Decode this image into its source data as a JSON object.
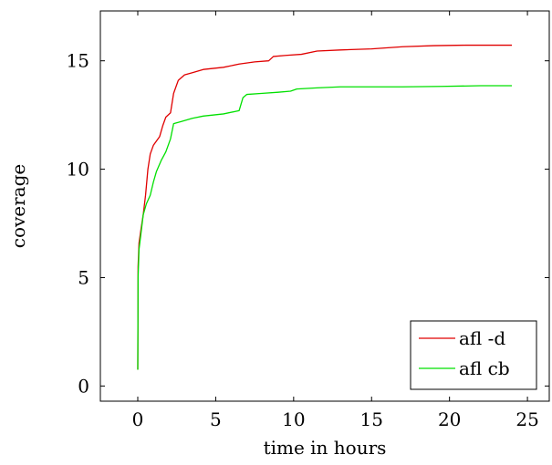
{
  "chart_data": {
    "type": "line",
    "title": "",
    "xlabel": "time in hours",
    "ylabel": "coverage",
    "xlim": [
      -2.4,
      26.4
    ],
    "ylim": [
      -0.7,
      17.3
    ],
    "xticks": [
      0,
      5,
      10,
      15,
      20,
      25
    ],
    "yticks": [
      0,
      5,
      10,
      15
    ],
    "grid": false,
    "legend_position": "bottom-right",
    "series": [
      {
        "name": "afl -d",
        "color": "#e00000",
        "points": [
          [
            0.0,
            0.75
          ],
          [
            0.02,
            5.5
          ],
          [
            0.08,
            6.6
          ],
          [
            0.2,
            7.2
          ],
          [
            0.35,
            7.9
          ],
          [
            0.5,
            8.8
          ],
          [
            0.65,
            10.0
          ],
          [
            0.8,
            10.7
          ],
          [
            1.0,
            11.1
          ],
          [
            1.2,
            11.3
          ],
          [
            1.4,
            11.5
          ],
          [
            1.6,
            12.0
          ],
          [
            1.8,
            12.4
          ],
          [
            2.1,
            12.6
          ],
          [
            2.3,
            13.5
          ],
          [
            2.6,
            14.1
          ],
          [
            3.0,
            14.35
          ],
          [
            3.5,
            14.45
          ],
          [
            4.2,
            14.6
          ],
          [
            5.5,
            14.7
          ],
          [
            6.5,
            14.85
          ],
          [
            7.5,
            14.95
          ],
          [
            8.4,
            15.0
          ],
          [
            8.7,
            15.2
          ],
          [
            9.5,
            15.25
          ],
          [
            10.5,
            15.3
          ],
          [
            11.5,
            15.45
          ],
          [
            13.0,
            15.5
          ],
          [
            15.0,
            15.55
          ],
          [
            17.0,
            15.65
          ],
          [
            19.0,
            15.7
          ],
          [
            21.0,
            15.72
          ],
          [
            24.0,
            15.72
          ]
        ]
      },
      {
        "name": "afl cb",
        "color": "#00e000",
        "points": [
          [
            0.0,
            0.75
          ],
          [
            0.02,
            5.0
          ],
          [
            0.08,
            6.3
          ],
          [
            0.2,
            7.0
          ],
          [
            0.35,
            7.9
          ],
          [
            0.55,
            8.4
          ],
          [
            0.8,
            8.8
          ],
          [
            1.0,
            9.4
          ],
          [
            1.2,
            9.9
          ],
          [
            1.5,
            10.4
          ],
          [
            1.8,
            10.8
          ],
          [
            2.1,
            11.4
          ],
          [
            2.3,
            12.1
          ],
          [
            2.8,
            12.2
          ],
          [
            3.5,
            12.35
          ],
          [
            4.2,
            12.45
          ],
          [
            5.5,
            12.55
          ],
          [
            6.5,
            12.7
          ],
          [
            6.75,
            13.3
          ],
          [
            7.0,
            13.45
          ],
          [
            8.0,
            13.5
          ],
          [
            9.0,
            13.55
          ],
          [
            9.8,
            13.6
          ],
          [
            10.2,
            13.7
          ],
          [
            11.5,
            13.75
          ],
          [
            13.0,
            13.8
          ],
          [
            15.0,
            13.8
          ],
          [
            17.0,
            13.8
          ],
          [
            19.5,
            13.82
          ],
          [
            22.0,
            13.85
          ],
          [
            24.0,
            13.85
          ]
        ]
      }
    ]
  }
}
